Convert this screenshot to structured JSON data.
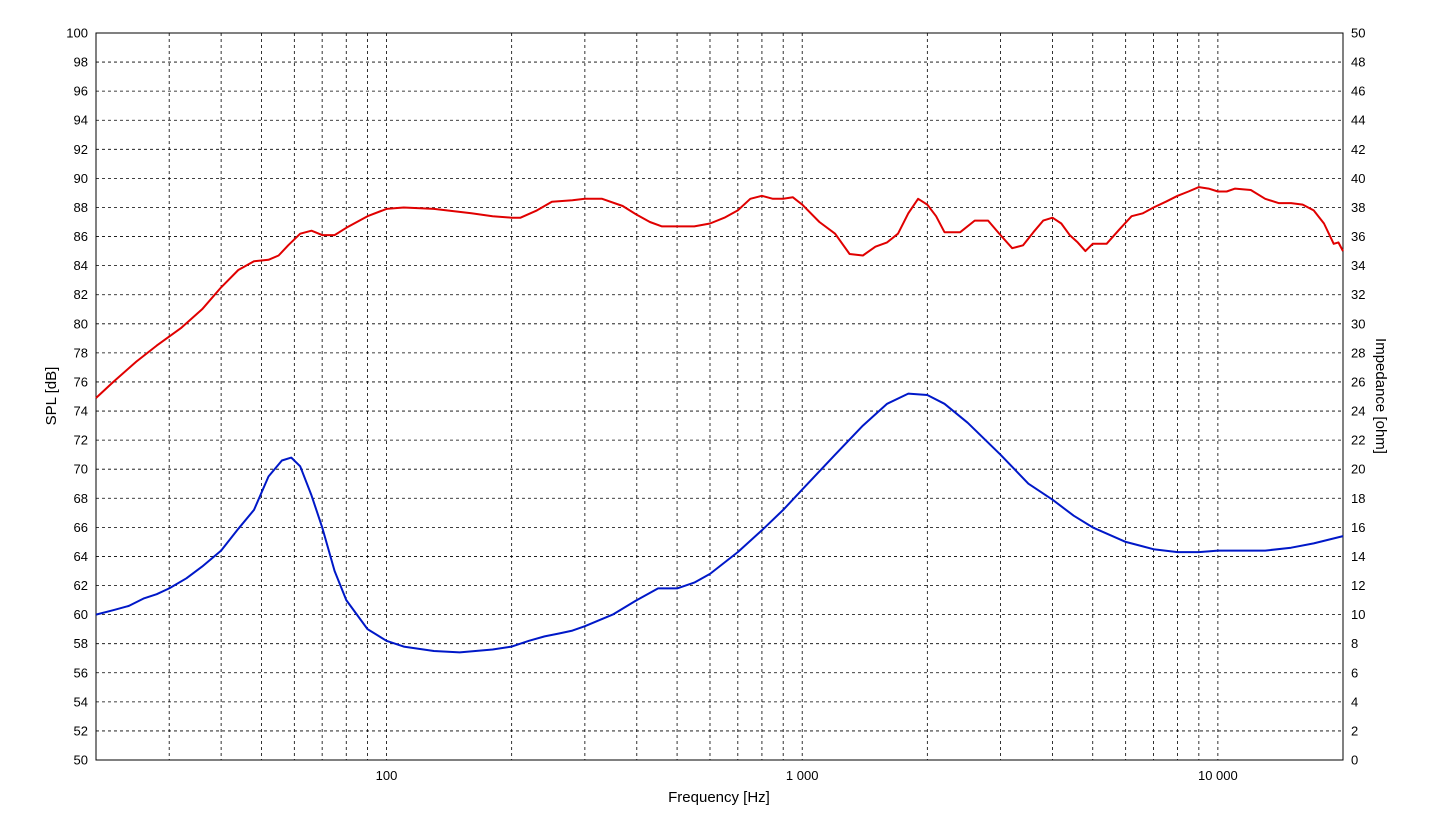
{
  "chart_data": {
    "type": "line",
    "xlabel": "Frequency [Hz]",
    "ylabel": "SPL [dB]",
    "y2label": "Impedance [ohm]",
    "x_scale": "log",
    "xlim": [
      20,
      20000
    ],
    "ylim": [
      50,
      100
    ],
    "y2lim": [
      0,
      50
    ],
    "grid": true,
    "x_tick_labels": [
      {
        "value": 100,
        "label": "100"
      },
      {
        "value": 1000,
        "label": "1 000"
      },
      {
        "value": 10000,
        "label": "10 000"
      }
    ],
    "y_ticks": [
      50,
      52,
      54,
      56,
      58,
      60,
      62,
      64,
      66,
      68,
      70,
      72,
      74,
      76,
      78,
      80,
      82,
      84,
      86,
      88,
      90,
      92,
      94,
      96,
      98,
      100
    ],
    "y2_ticks": [
      0,
      2,
      4,
      6,
      8,
      10,
      12,
      14,
      16,
      18,
      20,
      22,
      24,
      26,
      28,
      30,
      32,
      34,
      36,
      38,
      40,
      42,
      44,
      46,
      48,
      50
    ],
    "series": [
      {
        "axis": "left",
        "color": "#e00000",
        "points": [
          [
            20,
            74.9
          ],
          [
            22,
            76
          ],
          [
            25,
            77.4
          ],
          [
            28,
            78.5
          ],
          [
            32,
            79.7
          ],
          [
            36,
            81
          ],
          [
            40,
            82.5
          ],
          [
            44,
            83.7
          ],
          [
            48,
            84.3
          ],
          [
            52,
            84.4
          ],
          [
            55,
            84.7
          ],
          [
            58,
            85.4
          ],
          [
            62,
            86.2
          ],
          [
            66,
            86.4
          ],
          [
            70,
            86.1
          ],
          [
            75,
            86.1
          ],
          [
            80,
            86.6
          ],
          [
            90,
            87.4
          ],
          [
            100,
            87.9
          ],
          [
            110,
            88
          ],
          [
            130,
            87.9
          ],
          [
            160,
            87.6
          ],
          [
            180,
            87.4
          ],
          [
            200,
            87.3
          ],
          [
            210,
            87.3
          ],
          [
            230,
            87.8
          ],
          [
            250,
            88.4
          ],
          [
            280,
            88.5
          ],
          [
            300,
            88.6
          ],
          [
            330,
            88.6
          ],
          [
            370,
            88.1
          ],
          [
            400,
            87.5
          ],
          [
            430,
            87
          ],
          [
            460,
            86.7
          ],
          [
            500,
            86.7
          ],
          [
            550,
            86.7
          ],
          [
            600,
            86.9
          ],
          [
            650,
            87.3
          ],
          [
            700,
            87.8
          ],
          [
            750,
            88.6
          ],
          [
            800,
            88.8
          ],
          [
            850,
            88.6
          ],
          [
            900,
            88.6
          ],
          [
            950,
            88.7
          ],
          [
            1000,
            88.2
          ],
          [
            1100,
            87
          ],
          [
            1200,
            86.2
          ],
          [
            1300,
            84.8
          ],
          [
            1400,
            84.7
          ],
          [
            1500,
            85.3
          ],
          [
            1600,
            85.6
          ],
          [
            1700,
            86.2
          ],
          [
            1800,
            87.6
          ],
          [
            1900,
            88.6
          ],
          [
            2000,
            88.2
          ],
          [
            2100,
            87.4
          ],
          [
            2200,
            86.3
          ],
          [
            2400,
            86.3
          ],
          [
            2600,
            87.1
          ],
          [
            2800,
            87.1
          ],
          [
            3000,
            86.1
          ],
          [
            3200,
            85.2
          ],
          [
            3400,
            85.4
          ],
          [
            3600,
            86.3
          ],
          [
            3800,
            87.1
          ],
          [
            4000,
            87.3
          ],
          [
            4200,
            86.9
          ],
          [
            4400,
            86.1
          ],
          [
            4600,
            85.6
          ],
          [
            4800,
            85
          ],
          [
            5000,
            85.5
          ],
          [
            5400,
            85.5
          ],
          [
            5800,
            86.5
          ],
          [
            6200,
            87.4
          ],
          [
            6600,
            87.6
          ],
          [
            7000,
            88
          ],
          [
            7500,
            88.4
          ],
          [
            8000,
            88.8
          ],
          [
            8500,
            89.1
          ],
          [
            9000,
            89.4
          ],
          [
            9500,
            89.3
          ],
          [
            10000,
            89.1
          ],
          [
            10500,
            89.1
          ],
          [
            11000,
            89.3
          ],
          [
            12000,
            89.2
          ],
          [
            13000,
            88.6
          ],
          [
            14000,
            88.3
          ],
          [
            15000,
            88.3
          ],
          [
            16000,
            88.2
          ],
          [
            17000,
            87.8
          ],
          [
            18000,
            86.9
          ],
          [
            19000,
            85.5
          ],
          [
            19500,
            85.6
          ],
          [
            20000,
            85
          ]
        ]
      },
      {
        "axis": "right",
        "color": "#0018c8",
        "points": [
          [
            20,
            10
          ],
          [
            22,
            10.3
          ],
          [
            24,
            10.6
          ],
          [
            26,
            11.1
          ],
          [
            28,
            11.4
          ],
          [
            30,
            11.8
          ],
          [
            33,
            12.5
          ],
          [
            36,
            13.3
          ],
          [
            40,
            14.4
          ],
          [
            44,
            15.9
          ],
          [
            48,
            17.2
          ],
          [
            52,
            19.5
          ],
          [
            56,
            20.6
          ],
          [
            59,
            20.8
          ],
          [
            62,
            20.2
          ],
          [
            66,
            18.2
          ],
          [
            70,
            16
          ],
          [
            75,
            13
          ],
          [
            80,
            11
          ],
          [
            90,
            9
          ],
          [
            100,
            8.2
          ],
          [
            110,
            7.8
          ],
          [
            130,
            7.5
          ],
          [
            150,
            7.4
          ],
          [
            180,
            7.6
          ],
          [
            200,
            7.8
          ],
          [
            220,
            8.2
          ],
          [
            240,
            8.5
          ],
          [
            260,
            8.7
          ],
          [
            280,
            8.9
          ],
          [
            300,
            9.2
          ],
          [
            350,
            10
          ],
          [
            400,
            11
          ],
          [
            450,
            11.8
          ],
          [
            500,
            11.8
          ],
          [
            550,
            12.2
          ],
          [
            600,
            12.8
          ],
          [
            700,
            14.3
          ],
          [
            800,
            15.8
          ],
          [
            900,
            17.2
          ],
          [
            1000,
            18.6
          ],
          [
            1200,
            21
          ],
          [
            1400,
            23
          ],
          [
            1600,
            24.5
          ],
          [
            1800,
            25.2
          ],
          [
            2000,
            25.1
          ],
          [
            2200,
            24.5
          ],
          [
            2500,
            23.2
          ],
          [
            3000,
            21
          ],
          [
            3500,
            19
          ],
          [
            4000,
            17.9
          ],
          [
            4500,
            16.8
          ],
          [
            5000,
            16
          ],
          [
            6000,
            15
          ],
          [
            7000,
            14.5
          ],
          [
            8000,
            14.3
          ],
          [
            9000,
            14.3
          ],
          [
            10000,
            14.4
          ],
          [
            11000,
            14.4
          ],
          [
            12000,
            14.4
          ],
          [
            13000,
            14.4
          ],
          [
            15000,
            14.6
          ],
          [
            17000,
            14.9
          ],
          [
            20000,
            15.4
          ]
        ]
      }
    ]
  }
}
